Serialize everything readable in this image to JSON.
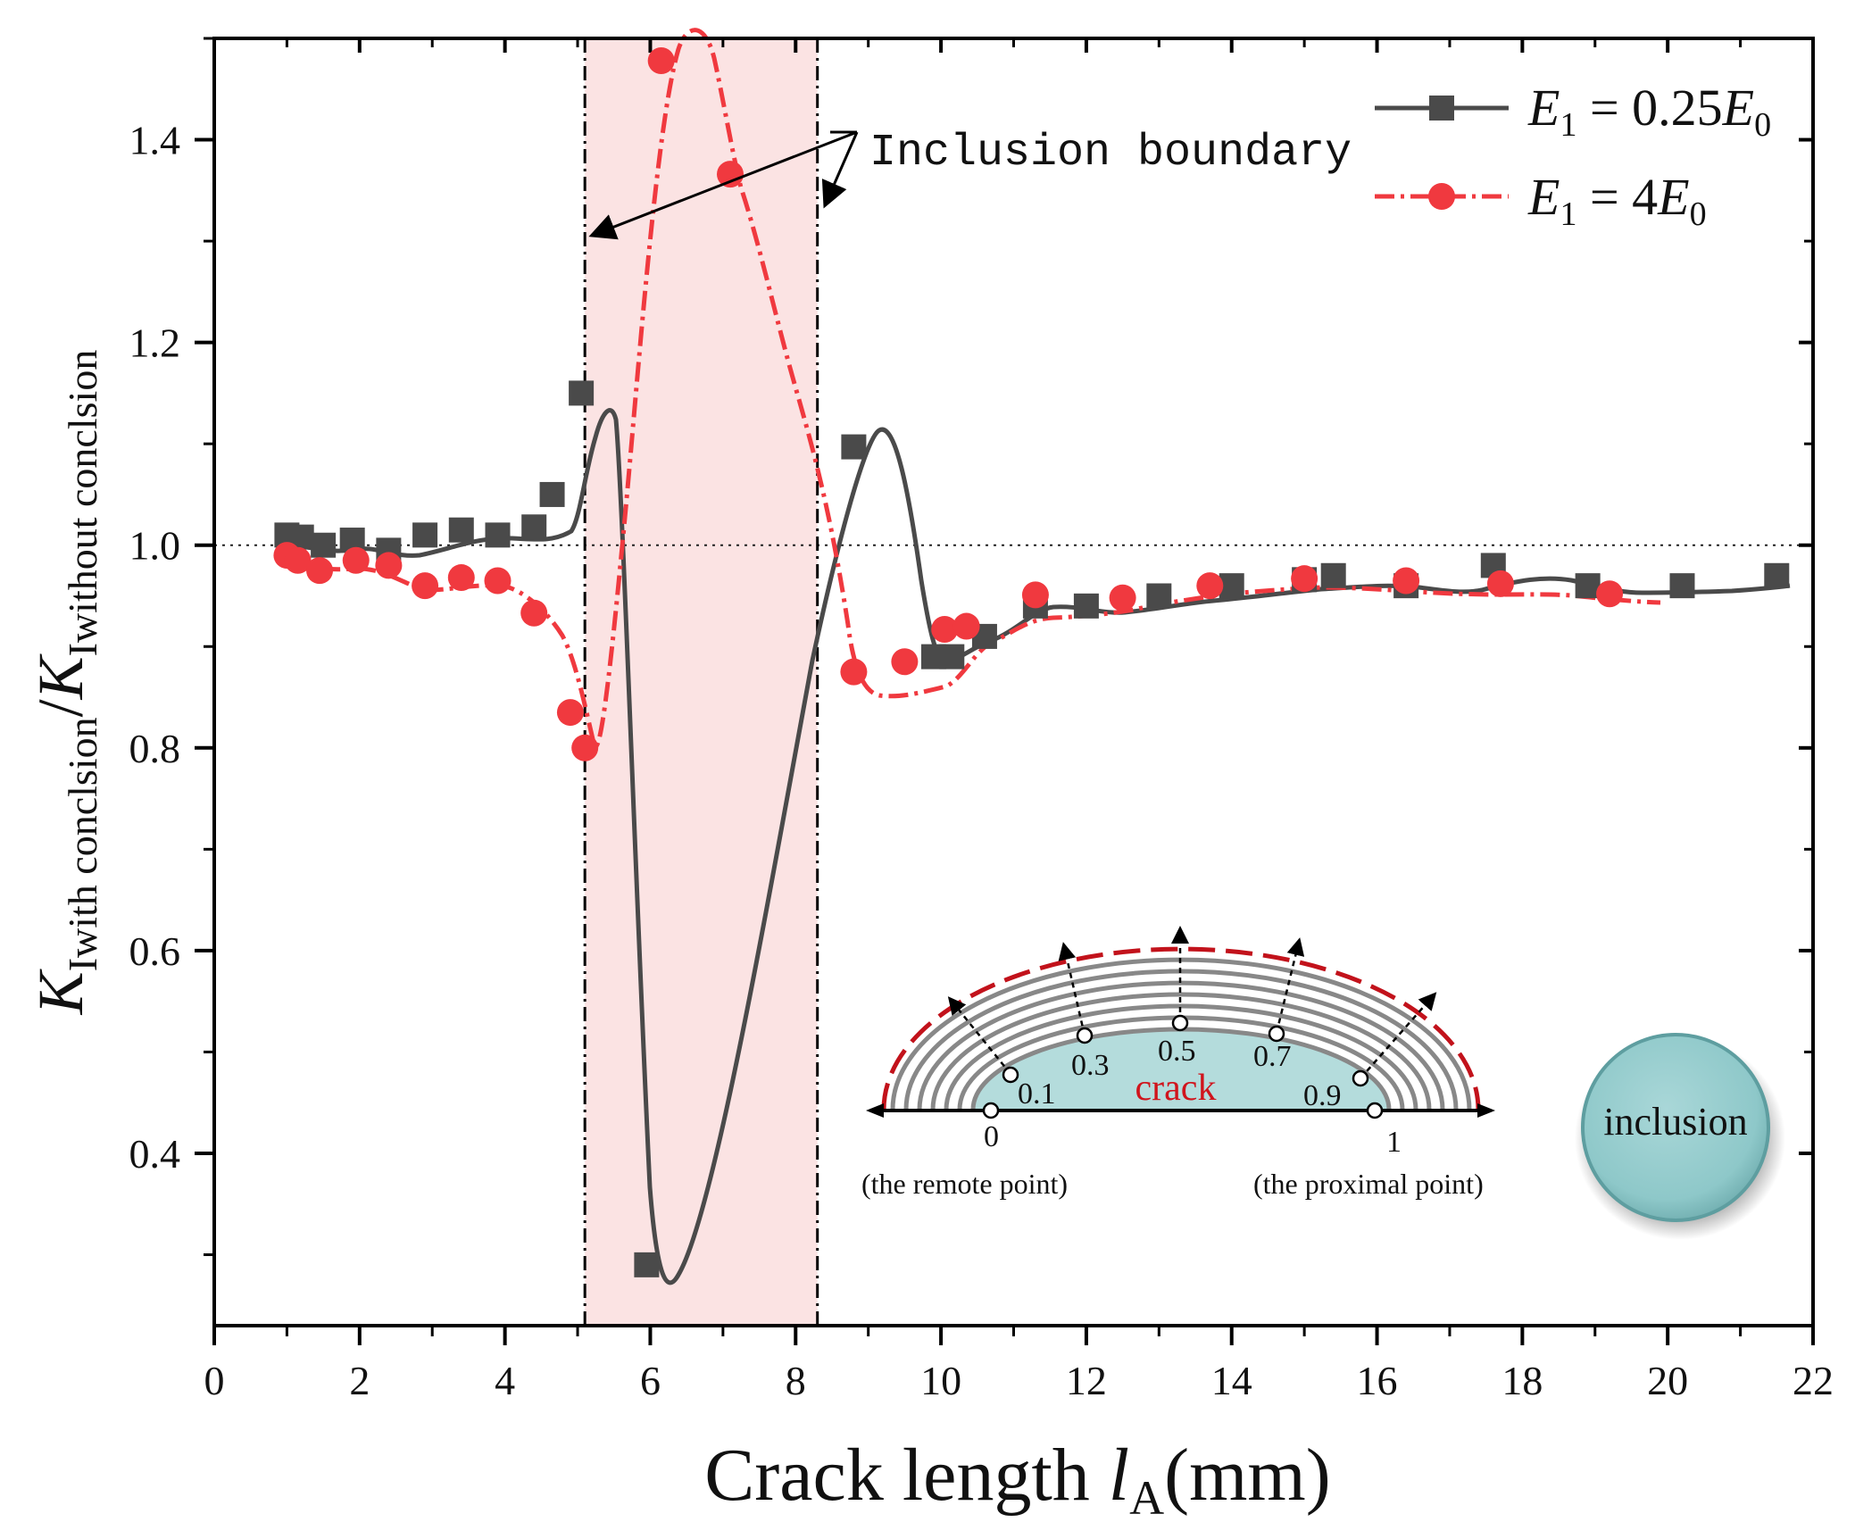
{
  "chart_data": {
    "type": "line",
    "xlabel_main": "Crack length ",
    "xlabel_italic": "l",
    "xlabel_sub": "A",
    "xlabel_unit": "(mm)",
    "ylabel": {
      "k1": "K",
      "sub1": "Iwith conclsion",
      "slash": "/",
      "k2": "K",
      "sub2": "Iwithout conclsion"
    },
    "xlim": [
      0,
      22
    ],
    "ylim": [
      0.23,
      1.5
    ],
    "x_ticks": [
      0,
      2,
      4,
      6,
      8,
      10,
      12,
      14,
      16,
      18,
      20,
      22
    ],
    "y_ticks": [
      0.4,
      0.6,
      0.8,
      1.0,
      1.2,
      1.4
    ],
    "y_tick_labels": [
      "0.4",
      "0.6",
      "0.8",
      "1.0",
      "1.2",
      "1.4"
    ],
    "reference_line": 1.0,
    "inclusion_region": [
      5.1,
      8.3
    ],
    "annotation": "Inclusion boundary",
    "series": [
      {
        "name": "E1 = 0.25E0",
        "legend_main": "E",
        "legend_sub": "1",
        "legend_eq": " = 0.25",
        "legend_main2": "E",
        "legend_sub2": "0",
        "color": "#4a4a4a",
        "marker": "square",
        "x": [
          1.0,
          1.2,
          1.5,
          1.9,
          2.4,
          2.9,
          3.4,
          3.9,
          4.4,
          4.65,
          5.05,
          5.95,
          8.8,
          9.9,
          10.15,
          10.6,
          11.3,
          12.0,
          13.0,
          14.0,
          15.0,
          15.4,
          16.4,
          17.6,
          18.9,
          20.2,
          21.5
        ],
        "y": [
          1.01,
          1.008,
          1.0,
          1.005,
          0.995,
          1.01,
          1.015,
          1.01,
          1.018,
          1.05,
          1.15,
          0.29,
          1.097,
          0.89,
          0.89,
          0.91,
          0.94,
          0.94,
          0.95,
          0.96,
          0.966,
          0.97,
          0.96,
          0.98,
          0.96,
          0.96,
          0.97
        ]
      },
      {
        "name": "E1 = 4E0",
        "legend_main": "E",
        "legend_sub": "1",
        "legend_eq": " = 4",
        "legend_main2": "E",
        "legend_sub2": "0",
        "color": "#f0393f",
        "marker": "circle",
        "x": [
          1.0,
          1.15,
          1.45,
          1.95,
          2.4,
          2.9,
          3.4,
          3.9,
          4.4,
          4.9,
          5.1,
          6.15,
          7.1,
          8.8,
          9.5,
          10.05,
          10.35,
          11.3,
          12.5,
          13.7,
          15.0,
          16.4,
          17.7,
          19.2
        ],
        "y": [
          0.99,
          0.985,
          0.975,
          0.985,
          0.98,
          0.96,
          0.968,
          0.965,
          0.933,
          0.835,
          0.8,
          1.478,
          1.366,
          0.875,
          0.885,
          0.917,
          0.92,
          0.951,
          0.948,
          0.96,
          0.967,
          0.965,
          0.962,
          0.952
        ]
      }
    ],
    "inset": {
      "crack_label": "crack",
      "points": [
        "0",
        "0.1",
        "0.3",
        "0.5",
        "0.7",
        "0.9",
        "1"
      ],
      "remote_label": "(the remote point)",
      "proximal_label": "(the proximal point)",
      "inclusion_label": "inclusion"
    }
  }
}
